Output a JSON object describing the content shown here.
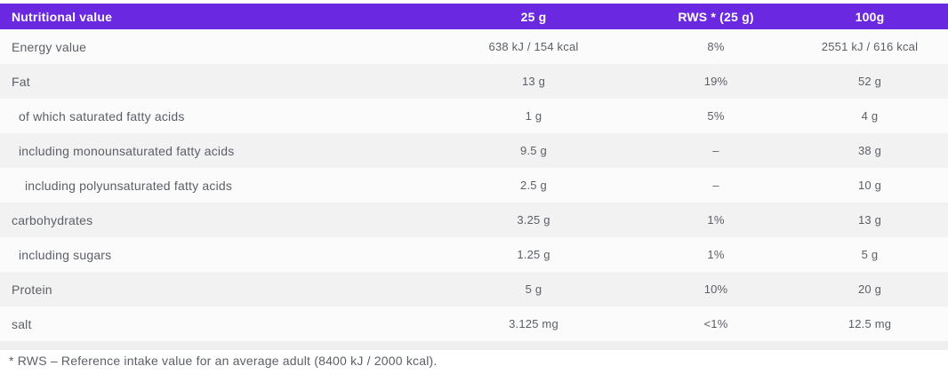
{
  "table": {
    "header": {
      "col0": "Nutritional value",
      "col1": "25 g",
      "col2": "RWS * (25 g)",
      "col3": "100g"
    },
    "rows": [
      {
        "label": "Energy value",
        "per_25g": "638 kJ / 154 kcal",
        "rws_25g": "8%",
        "per_100g": "2551 kJ / 616 kcal"
      },
      {
        "label": "Fat",
        "per_25g": "13 g",
        "rws_25g": "19%",
        "per_100g": "52 g"
      },
      {
        "label": "of which saturated fatty acids",
        "per_25g": "1 g",
        "rws_25g": "5%",
        "per_100g": "4 g"
      },
      {
        "label": "including monounsaturated fatty acids",
        "per_25g": "9.5 g",
        "rws_25g": "–",
        "per_100g": "38 g"
      },
      {
        "label": "including polyunsaturated fatty acids",
        "per_25g": "2.5 g",
        "rws_25g": "–",
        "per_100g": "10 g"
      },
      {
        "label": "carbohydrates",
        "per_25g": "3.25 g",
        "rws_25g": "1%",
        "per_100g": "13 g"
      },
      {
        "label": "including sugars",
        "per_25g": "1.25 g",
        "rws_25g": "1%",
        "per_100g": "5 g"
      },
      {
        "label": "Protein",
        "per_25g": "5 g",
        "rws_25g": "10%",
        "per_100g": "20 g"
      },
      {
        "label": "salt",
        "per_25g": "3.125 mg",
        "rws_25g": "<1%",
        "per_100g": "12.5 mg"
      }
    ],
    "footnote": "* RWS – Reference intake value for an average adult (8400 kJ / 2000 kcal).",
    "colors": {
      "header_bg": "#6A28E0",
      "header_text": "#FFFFFF",
      "row_bg": "#FBFBFB",
      "row_alt_bg": "#F2F2F2",
      "text": "#5B5F66",
      "divider": "#EFEFEF"
    }
  }
}
